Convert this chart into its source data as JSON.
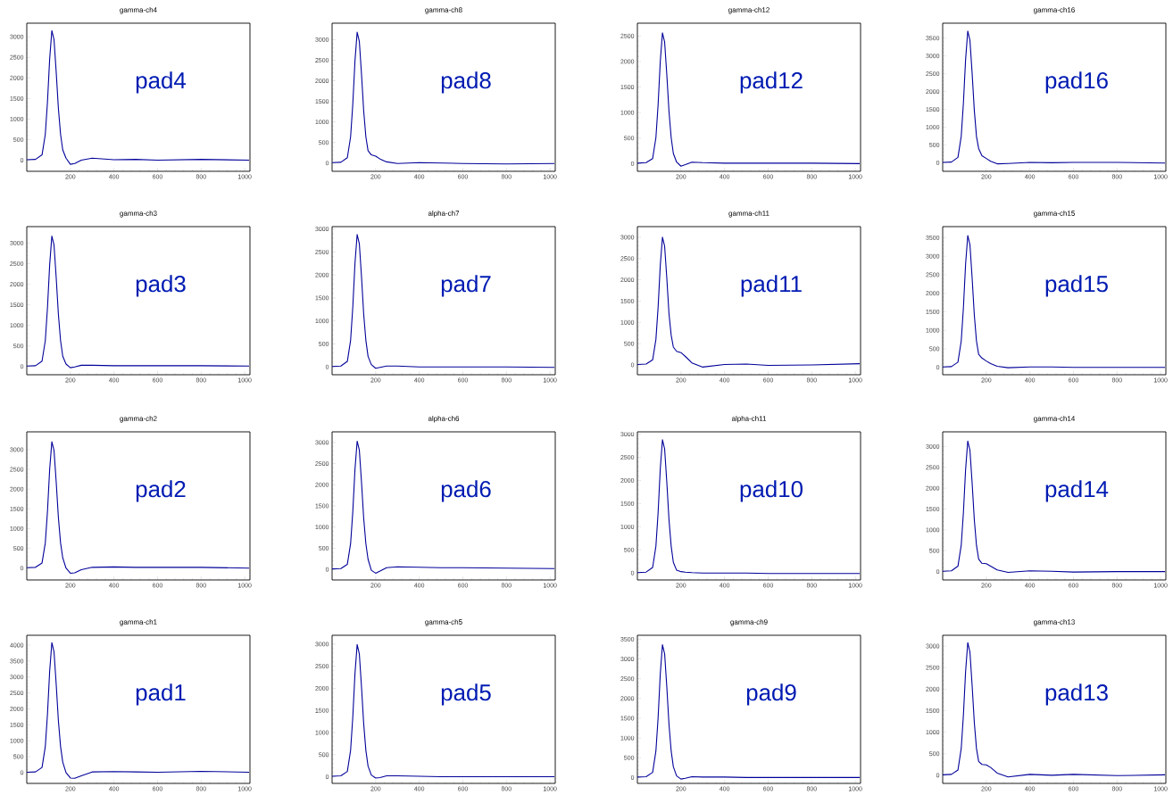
{
  "chart_data": [
    {
      "type": "line",
      "title": "gamma-ch4",
      "annotations": [
        "pad4"
      ],
      "color": "#000099",
      "xlim": [
        0,
        1024
      ],
      "ylim": [
        -270,
        3330
      ],
      "xticks": [
        200,
        400,
        600,
        800,
        1000
      ],
      "yticks": [
        0,
        500,
        1000,
        1500,
        2000,
        2500,
        3000
      ],
      "x": [
        0,
        40,
        70,
        85,
        95,
        105,
        115,
        125,
        135,
        145,
        155,
        165,
        180,
        200,
        220,
        250,
        300,
        400,
        500,
        600,
        800,
        1020
      ],
      "values": [
        10,
        20,
        130,
        630,
        1420,
        2460,
        3150,
        2930,
        2140,
        1260,
        630,
        250,
        50,
        -100,
        -80,
        0,
        50,
        10,
        20,
        0,
        20,
        0
      ]
    },
    {
      "type": "line",
      "title": "gamma-ch8",
      "annotations": [
        "pad8"
      ],
      "color": "#000099",
      "xlim": [
        0,
        1024
      ],
      "ylim": [
        -200,
        3400
      ],
      "xticks": [
        200,
        400,
        600,
        800,
        1000
      ],
      "yticks": [
        0,
        500,
        1000,
        1500,
        2000,
        2500,
        3000
      ],
      "x": [
        0,
        40,
        70,
        85,
        95,
        105,
        115,
        125,
        135,
        145,
        155,
        165,
        180,
        200,
        220,
        250,
        300,
        400,
        500,
        600,
        800,
        1020
      ],
      "values": [
        10,
        20,
        130,
        640,
        1430,
        2480,
        3180,
        2960,
        2160,
        1270,
        640,
        300,
        200,
        170,
        100,
        30,
        -10,
        10,
        0,
        -10,
        -20,
        -10
      ]
    },
    {
      "type": "line",
      "title": "gamma-ch12",
      "annotations": [
        "pad12"
      ],
      "color": "#000099",
      "xlim": [
        0,
        1024
      ],
      "ylim": [
        -150,
        2750
      ],
      "xticks": [
        200,
        400,
        600,
        800,
        1000
      ],
      "yticks": [
        0,
        500,
        1000,
        1500,
        2000,
        2500
      ],
      "x": [
        0,
        40,
        70,
        85,
        95,
        105,
        115,
        125,
        135,
        145,
        155,
        165,
        180,
        200,
        220,
        250,
        300,
        400,
        500,
        600,
        800,
        1020
      ],
      "values": [
        10,
        20,
        100,
        510,
        1150,
        2000,
        2560,
        2380,
        1740,
        1020,
        510,
        200,
        30,
        -50,
        -20,
        30,
        20,
        10,
        10,
        10,
        10,
        0
      ]
    },
    {
      "type": "line",
      "title": "gamma-ch16",
      "annotations": [
        "pad16"
      ],
      "color": "#000099",
      "xlim": [
        0,
        1024
      ],
      "ylim": [
        -240,
        3920
      ],
      "xticks": [
        200,
        400,
        600,
        800,
        1000
      ],
      "yticks": [
        0,
        500,
        1000,
        1500,
        2000,
        2500,
        3000,
        3500
      ],
      "x": [
        0,
        40,
        70,
        85,
        95,
        105,
        115,
        125,
        135,
        145,
        155,
        165,
        180,
        200,
        220,
        250,
        300,
        400,
        500,
        600,
        800,
        1020
      ],
      "values": [
        10,
        20,
        150,
        740,
        1670,
        2890,
        3700,
        3440,
        2520,
        1480,
        740,
        400,
        200,
        120,
        40,
        -30,
        -20,
        10,
        0,
        10,
        10,
        -10
      ]
    },
    {
      "type": "line",
      "title": "gamma-ch3",
      "annotations": [
        "pad3"
      ],
      "color": "#000099",
      "xlim": [
        0,
        1024
      ],
      "ylim": [
        -200,
        3400
      ],
      "xticks": [
        200,
        400,
        600,
        800,
        1000
      ],
      "yticks": [
        0,
        500,
        1000,
        1500,
        2000,
        2500,
        3000
      ],
      "x": [
        0,
        40,
        70,
        85,
        95,
        105,
        115,
        125,
        135,
        145,
        155,
        165,
        180,
        200,
        220,
        250,
        300,
        400,
        500,
        600,
        800,
        1020
      ],
      "values": [
        10,
        20,
        130,
        630,
        1430,
        2470,
        3170,
        2950,
        2160,
        1270,
        630,
        250,
        60,
        -30,
        -10,
        30,
        30,
        20,
        20,
        20,
        20,
        10
      ]
    },
    {
      "type": "line",
      "title": "alpha-ch7",
      "annotations": [
        "pad7"
      ],
      "color": "#000099",
      "xlim": [
        0,
        1024
      ],
      "ylim": [
        -170,
        3050
      ],
      "xticks": [
        200,
        400,
        600,
        800,
        1000
      ],
      "yticks": [
        0,
        500,
        1000,
        1500,
        2000,
        2500,
        3000
      ],
      "x": [
        0,
        40,
        70,
        85,
        95,
        105,
        115,
        125,
        135,
        145,
        155,
        165,
        180,
        200,
        220,
        250,
        300,
        400,
        500,
        600,
        800,
        1020
      ],
      "values": [
        10,
        20,
        120,
        580,
        1300,
        2250,
        2880,
        2680,
        1960,
        1150,
        580,
        230,
        50,
        -30,
        -10,
        20,
        20,
        0,
        0,
        0,
        0,
        -10
      ]
    },
    {
      "type": "line",
      "title": "gamma-ch11",
      "annotations": [
        "pad11"
      ],
      "color": "#000099",
      "xlim": [
        0,
        1024
      ],
      "ylim": [
        -230,
        3250
      ],
      "xticks": [
        200,
        400,
        600,
        800,
        1000
      ],
      "yticks": [
        0,
        500,
        1000,
        1500,
        2000,
        2500,
        3000
      ],
      "x": [
        0,
        40,
        70,
        85,
        95,
        105,
        115,
        125,
        135,
        145,
        155,
        165,
        180,
        200,
        220,
        250,
        300,
        400,
        500,
        600,
        800,
        1020
      ],
      "values": [
        10,
        20,
        120,
        600,
        1350,
        2340,
        3000,
        2790,
        2040,
        1200,
        700,
        420,
        320,
        290,
        200,
        50,
        -50,
        10,
        20,
        -10,
        0,
        30
      ]
    },
    {
      "type": "line",
      "title": "gamma-ch15",
      "annotations": [
        "pad15"
      ],
      "color": "#000099",
      "xlim": [
        0,
        1024
      ],
      "ylim": [
        -200,
        3800
      ],
      "xticks": [
        200,
        400,
        600,
        800,
        1000
      ],
      "yticks": [
        0,
        500,
        1000,
        1500,
        2000,
        2500,
        3000,
        3500
      ],
      "x": [
        0,
        40,
        70,
        85,
        95,
        105,
        115,
        125,
        135,
        145,
        155,
        165,
        180,
        200,
        220,
        250,
        300,
        400,
        500,
        600,
        800,
        1020
      ],
      "values": [
        10,
        20,
        140,
        710,
        1600,
        2780,
        3560,
        3310,
        2420,
        1420,
        710,
        350,
        250,
        170,
        100,
        30,
        -10,
        10,
        10,
        0,
        0,
        0
      ]
    },
    {
      "type": "line",
      "title": "gamma-ch2",
      "annotations": [
        "pad2"
      ],
      "color": "#000099",
      "xlim": [
        0,
        1024
      ],
      "ylim": [
        -300,
        3450
      ],
      "xticks": [
        200,
        400,
        600,
        800,
        1000
      ],
      "yticks": [
        0,
        500,
        1000,
        1500,
        2000,
        2500,
        3000
      ],
      "x": [
        0,
        40,
        70,
        85,
        95,
        105,
        115,
        125,
        135,
        145,
        155,
        165,
        180,
        200,
        220,
        250,
        300,
        400,
        500,
        600,
        800,
        1020
      ],
      "values": [
        10,
        20,
        130,
        640,
        1440,
        2500,
        3200,
        2980,
        2180,
        1280,
        640,
        260,
        0,
        -130,
        -120,
        -40,
        20,
        30,
        20,
        20,
        20,
        0
      ]
    },
    {
      "type": "line",
      "title": "alpha-ch6",
      "annotations": [
        "pad6"
      ],
      "color": "#000099",
      "xlim": [
        0,
        1024
      ],
      "ylim": [
        -250,
        3250
      ],
      "xticks": [
        200,
        400,
        600,
        800,
        1000
      ],
      "yticks": [
        0,
        500,
        1000,
        1500,
        2000,
        2500,
        3000
      ],
      "x": [
        0,
        40,
        70,
        85,
        95,
        105,
        115,
        125,
        135,
        145,
        155,
        165,
        180,
        200,
        220,
        250,
        300,
        400,
        500,
        600,
        800,
        1020
      ],
      "values": [
        10,
        20,
        120,
        610,
        1360,
        2360,
        3030,
        2820,
        2060,
        1210,
        610,
        240,
        -20,
        -90,
        -40,
        40,
        60,
        50,
        40,
        40,
        30,
        20
      ]
    },
    {
      "type": "line",
      "title": "alpha-ch11",
      "annotations": [
        "pad10"
      ],
      "color": "#000099",
      "xlim": [
        0,
        1024
      ],
      "ylim": [
        -150,
        3050
      ],
      "xticks": [
        200,
        400,
        600,
        800,
        1000
      ],
      "yticks": [
        0,
        500,
        1000,
        1500,
        2000,
        2500,
        3000
      ],
      "x": [
        0,
        40,
        70,
        85,
        95,
        105,
        115,
        125,
        135,
        145,
        155,
        165,
        180,
        200,
        220,
        250,
        300,
        400,
        500,
        600,
        800,
        1020
      ],
      "values": [
        10,
        20,
        120,
        580,
        1300,
        2250,
        2880,
        2680,
        1960,
        1150,
        580,
        230,
        60,
        30,
        20,
        10,
        0,
        0,
        0,
        -10,
        -10,
        -10
      ]
    },
    {
      "type": "line",
      "title": "gamma-ch14",
      "annotations": [
        "pad14"
      ],
      "color": "#000099",
      "xlim": [
        0,
        1024
      ],
      "ylim": [
        -200,
        3350
      ],
      "xticks": [
        200,
        400,
        600,
        800,
        1000
      ],
      "yticks": [
        0,
        500,
        1000,
        1500,
        2000,
        2500,
        3000
      ],
      "x": [
        0,
        40,
        70,
        85,
        95,
        105,
        115,
        125,
        135,
        145,
        155,
        165,
        180,
        200,
        220,
        250,
        300,
        400,
        500,
        600,
        800,
        1020
      ],
      "values": [
        10,
        20,
        130,
        630,
        1410,
        2440,
        3130,
        2910,
        2130,
        1250,
        630,
        300,
        200,
        190,
        130,
        40,
        -20,
        20,
        10,
        -10,
        0,
        0
      ]
    },
    {
      "type": "line",
      "title": "gamma-ch1",
      "annotations": [
        "pad1"
      ],
      "color": "#000099",
      "xlim": [
        0,
        1024
      ],
      "ylim": [
        -340,
        4310
      ],
      "xticks": [
        200,
        400,
        600,
        800,
        1000
      ],
      "yticks": [
        0,
        500,
        1000,
        1500,
        2000,
        2500,
        3000,
        3500,
        4000
      ],
      "x": [
        0,
        40,
        70,
        85,
        95,
        105,
        115,
        125,
        135,
        145,
        155,
        165,
        180,
        200,
        220,
        250,
        300,
        400,
        500,
        600,
        800,
        1020
      ],
      "values": [
        10,
        20,
        160,
        820,
        1840,
        3180,
        4080,
        3790,
        2770,
        1630,
        820,
        330,
        0,
        -170,
        -180,
        -100,
        20,
        30,
        20,
        10,
        40,
        10
      ]
    },
    {
      "type": "line",
      "title": "gamma-ch5",
      "annotations": [
        "pad5"
      ],
      "color": "#000099",
      "xlim": [
        0,
        1024
      ],
      "ylim": [
        -150,
        3200
      ],
      "xticks": [
        200,
        400,
        600,
        800,
        1000
      ],
      "yticks": [
        0,
        500,
        1000,
        1500,
        2000,
        2500,
        3000
      ],
      "x": [
        0,
        40,
        70,
        85,
        95,
        105,
        115,
        125,
        135,
        145,
        155,
        165,
        180,
        200,
        220,
        250,
        300,
        400,
        500,
        600,
        800,
        1020
      ],
      "values": [
        10,
        20,
        120,
        600,
        1350,
        2330,
        2990,
        2780,
        2030,
        1200,
        600,
        240,
        40,
        -30,
        -20,
        20,
        20,
        10,
        0,
        0,
        0,
        0
      ]
    },
    {
      "type": "line",
      "title": "gamma-ch9",
      "annotations": [
        "pad9"
      ],
      "color": "#000099",
      "xlim": [
        0,
        1024
      ],
      "ylim": [
        -150,
        3600
      ],
      "xticks": [
        200,
        400,
        600,
        800,
        1000
      ],
      "yticks": [
        0,
        500,
        1000,
        1500,
        2000,
        2500,
        3000,
        3500
      ],
      "x": [
        0,
        40,
        70,
        85,
        95,
        105,
        115,
        125,
        135,
        145,
        155,
        165,
        180,
        200,
        220,
        250,
        300,
        400,
        500,
        600,
        800,
        1020
      ],
      "values": [
        10,
        20,
        130,
        670,
        1510,
        2620,
        3360,
        3130,
        2290,
        1340,
        670,
        270,
        40,
        -40,
        -20,
        20,
        10,
        10,
        0,
        0,
        0,
        0
      ]
    },
    {
      "type": "line",
      "title": "gamma-ch13",
      "annotations": [
        "pad13"
      ],
      "color": "#000099",
      "xlim": [
        0,
        1024
      ],
      "ylim": [
        -190,
        3250
      ],
      "xticks": [
        200,
        400,
        600,
        800,
        1000
      ],
      "yticks": [
        0,
        500,
        1000,
        1500,
        2000,
        2500,
        3000
      ],
      "x": [
        0,
        40,
        70,
        85,
        95,
        105,
        115,
        125,
        135,
        145,
        155,
        165,
        180,
        200,
        220,
        250,
        300,
        400,
        500,
        600,
        800,
        1020
      ],
      "values": [
        10,
        20,
        120,
        620,
        1390,
        2400,
        3080,
        2860,
        2090,
        1230,
        620,
        320,
        250,
        240,
        180,
        50,
        -40,
        20,
        0,
        20,
        -10,
        10
      ]
    }
  ]
}
